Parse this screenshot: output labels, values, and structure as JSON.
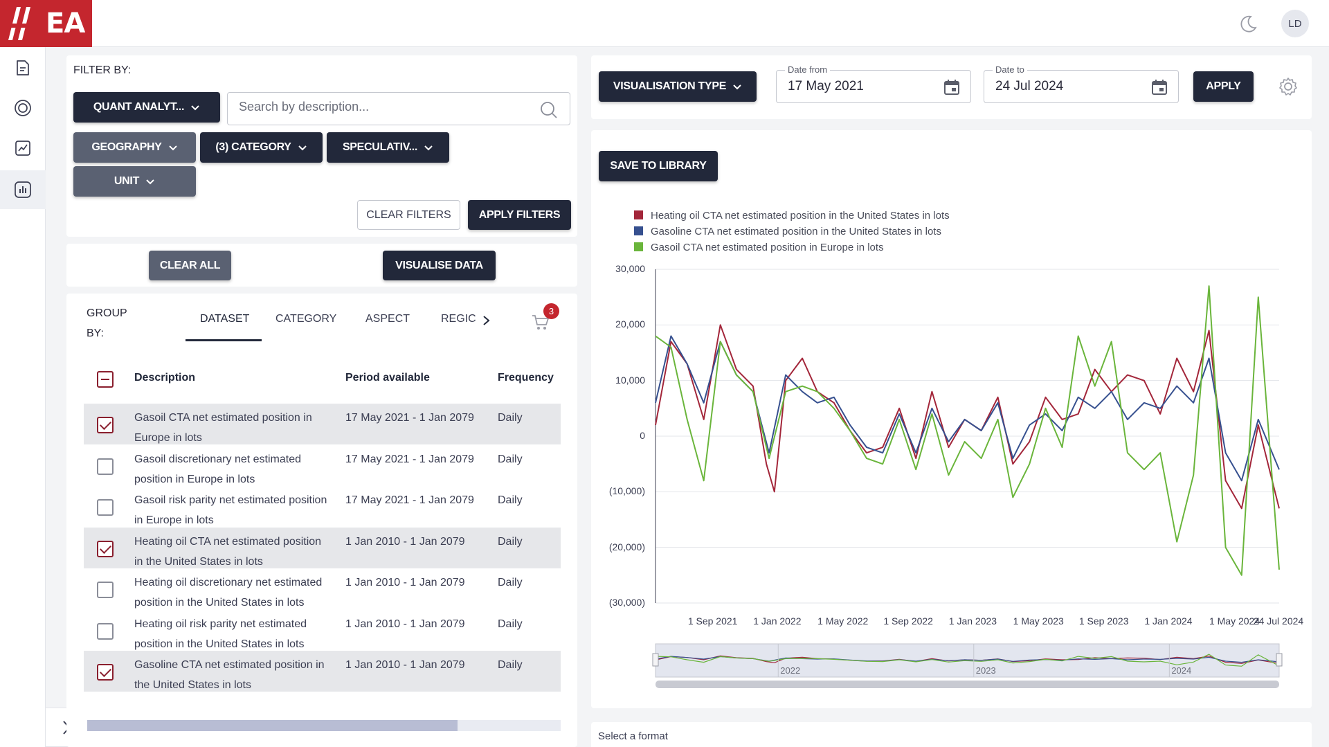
{
  "app": {
    "logo_text": "EA",
    "user_initials": "LD",
    "brand_color": "#c4262e"
  },
  "sidebar": {
    "items": [
      {
        "icon": "document-icon"
      },
      {
        "icon": "target-icon"
      },
      {
        "icon": "chart-report-icon"
      },
      {
        "icon": "bar-chart-icon",
        "active": true
      }
    ]
  },
  "filters": {
    "title": "FILTER BY:",
    "dataset_dropdown": "QUANT ANALYT...",
    "search_placeholder": "Search by description...",
    "geography": "GEOGRAPHY",
    "category": "(3) CATEGORY",
    "speculative": "SPECULATIV...",
    "unit": "UNIT",
    "clear_filters": "CLEAR FILTERS",
    "apply_filters": "APPLY FILTERS"
  },
  "actions": {
    "clear_all": "CLEAR ALL",
    "visualise": "VISUALISE DATA"
  },
  "group": {
    "label_line1": "GROUP",
    "label_line2": "BY:",
    "tabs": [
      "DATASET",
      "CATEGORY",
      "ASPECT",
      "REGIC"
    ],
    "cart_count": "3"
  },
  "table": {
    "headers": {
      "description": "Description",
      "period": "Period available",
      "frequency": "Frequency"
    },
    "rows": [
      {
        "desc1": "Gasoil CTA net estimated position in",
        "desc2": "Europe in lots",
        "period": "17 May 2021 - 1 Jan 2079",
        "freq": "Daily",
        "checked": true
      },
      {
        "desc1": "Gasoil discretionary net estimated",
        "desc2": "position in Europe in lots",
        "period": "17 May 2021 - 1 Jan 2079",
        "freq": "Daily",
        "checked": false
      },
      {
        "desc1": "Gasoil risk parity net estimated position",
        "desc2": "in Europe in lots",
        "period": "17 May 2021 - 1 Jan 2079",
        "freq": "Daily",
        "checked": false
      },
      {
        "desc1": "Heating oil CTA net estimated position",
        "desc2": "in the United States in lots",
        "period": "1 Jan 2010 - 1 Jan 2079",
        "freq": "Daily",
        "checked": true
      },
      {
        "desc1": "Heating oil discretionary net estimated",
        "desc2": "position in the United States in lots",
        "period": "1 Jan 2010 - 1 Jan 2079",
        "freq": "Daily",
        "checked": false
      },
      {
        "desc1": "Heating oil risk parity net estimated",
        "desc2": "position in the United States in lots",
        "period": "1 Jan 2010 - 1 Jan 2079",
        "freq": "Daily",
        "checked": false
      },
      {
        "desc1": "Gasoline CTA net estimated position in",
        "desc2": "the United States in lots",
        "period": "1 Jan 2010 - 1 Jan 2079",
        "freq": "Daily",
        "checked": true
      }
    ]
  },
  "controls": {
    "visualisation_type": "VISUALISATION TYPE",
    "date_from_label": "Date from",
    "date_from": "17 May 2021",
    "date_to_label": "Date to",
    "date_to": "24 Jul 2024",
    "apply": "APPLY",
    "save_to_library": "SAVE TO LIBRARY",
    "select_format": "Select a format"
  },
  "chart_data": {
    "type": "line",
    "x_range": [
      "2021-05-17",
      "2024-07-24"
    ],
    "ylim": [
      -30000,
      30000
    ],
    "y_ticks": [
      "30,000",
      "20,000",
      "10,000",
      "0",
      "(10,000)",
      "(20,000)",
      "(30,000)"
    ],
    "x_ticks": [
      "1 Sep 2021",
      "1 Jan 2022",
      "1 May 2022",
      "1 Sep 2022",
      "1 Jan 2023",
      "1 May 2023",
      "1 Sep 2023",
      "1 Jan 2024",
      "1 May 2024",
      "24 Jul 2024"
    ],
    "navigator_ticks": [
      "2022",
      "2023",
      "2024"
    ],
    "legend_position": "top-left",
    "series": [
      {
        "name": "Heating oil CTA net estimated position in the United States in lots",
        "color": "#a3263a",
        "x": [
          "2021-05-17",
          "2021-06-15",
          "2021-07-15",
          "2021-08-15",
          "2021-09-15",
          "2021-10-15",
          "2021-11-15",
          "2021-12-10",
          "2021-12-25",
          "2022-01-15",
          "2022-02-15",
          "2022-03-15",
          "2022-04-15",
          "2022-05-15",
          "2022-06-15",
          "2022-07-15",
          "2022-08-15",
          "2022-09-15",
          "2022-10-15",
          "2022-11-15",
          "2022-12-15",
          "2023-01-15",
          "2023-02-15",
          "2023-03-15",
          "2023-04-15",
          "2023-05-15",
          "2023-06-15",
          "2023-07-15",
          "2023-08-15",
          "2023-09-15",
          "2023-10-15",
          "2023-11-15",
          "2023-12-15",
          "2024-01-15",
          "2024-02-15",
          "2024-03-15",
          "2024-04-15",
          "2024-05-15",
          "2024-06-15",
          "2024-07-24"
        ],
        "values": [
          2000,
          17000,
          13000,
          3000,
          20000,
          12000,
          9000,
          -5000,
          -10000,
          10000,
          14000,
          8000,
          6000,
          1000,
          -3000,
          -2000,
          5000,
          -4000,
          8000,
          -2000,
          3000,
          1000,
          7000,
          -5000,
          -1000,
          7000,
          3000,
          4000,
          12000,
          8000,
          11000,
          10000,
          4000,
          14000,
          8000,
          19000,
          -8000,
          -13000,
          2000,
          -13000
        ]
      },
      {
        "name": "Gasoline CTA net estimated position in the United States in lots",
        "color": "#36508f",
        "x": [
          "2021-05-17",
          "2021-06-15",
          "2021-07-15",
          "2021-08-15",
          "2021-09-15",
          "2021-10-15",
          "2021-11-15",
          "2021-12-15",
          "2022-01-15",
          "2022-02-15",
          "2022-03-15",
          "2022-04-15",
          "2022-05-15",
          "2022-06-15",
          "2022-07-15",
          "2022-08-15",
          "2022-09-15",
          "2022-10-15",
          "2022-11-15",
          "2022-12-15",
          "2023-01-15",
          "2023-02-15",
          "2023-03-15",
          "2023-04-15",
          "2023-05-15",
          "2023-06-15",
          "2023-07-15",
          "2023-08-15",
          "2023-09-15",
          "2023-10-15",
          "2023-11-15",
          "2023-12-15",
          "2024-01-15",
          "2024-02-15",
          "2024-03-15",
          "2024-04-15",
          "2024-05-15",
          "2024-06-15",
          "2024-07-24"
        ],
        "values": [
          6000,
          18000,
          13000,
          6000,
          17000,
          11000,
          8000,
          -3000,
          11000,
          8000,
          6000,
          7000,
          2000,
          -2000,
          -3000,
          4000,
          -3000,
          5000,
          -1000,
          3000,
          1000,
          6000,
          -4000,
          2000,
          4000,
          1000,
          7000,
          5000,
          8000,
          3000,
          6000,
          5000,
          9000,
          6000,
          14000,
          -3000,
          -8000,
          3000,
          -6000
        ]
      },
      {
        "name": "Gasoil CTA net estimated position in Europe in lots",
        "color": "#6ab53b",
        "x": [
          "2021-05-17",
          "2021-06-15",
          "2021-07-15",
          "2021-08-15",
          "2021-09-15",
          "2021-10-15",
          "2021-11-15",
          "2021-12-15",
          "2022-01-15",
          "2022-02-15",
          "2022-03-15",
          "2022-04-15",
          "2022-05-15",
          "2022-06-15",
          "2022-07-15",
          "2022-08-15",
          "2022-09-15",
          "2022-10-15",
          "2022-11-15",
          "2022-12-15",
          "2023-01-15",
          "2023-02-15",
          "2023-03-15",
          "2023-04-15",
          "2023-05-15",
          "2023-06-15",
          "2023-07-15",
          "2023-08-15",
          "2023-09-15",
          "2023-10-15",
          "2023-11-15",
          "2023-12-15",
          "2024-01-15",
          "2024-02-15",
          "2024-03-15",
          "2024-04-15",
          "2024-05-15",
          "2024-06-15",
          "2024-07-24"
        ],
        "values": [
          18000,
          16000,
          3000,
          -8000,
          17000,
          11000,
          8000,
          -4000,
          8000,
          9000,
          8000,
          5000,
          1000,
          -4000,
          -5000,
          3000,
          -6000,
          4000,
          -7000,
          -1000,
          -4000,
          3000,
          -11000,
          -5000,
          5000,
          -2000,
          18000,
          9000,
          17000,
          -3000,
          -6000,
          -3000,
          -19000,
          -7000,
          27000,
          -20000,
          -25000,
          25000,
          -24000
        ]
      }
    ]
  }
}
